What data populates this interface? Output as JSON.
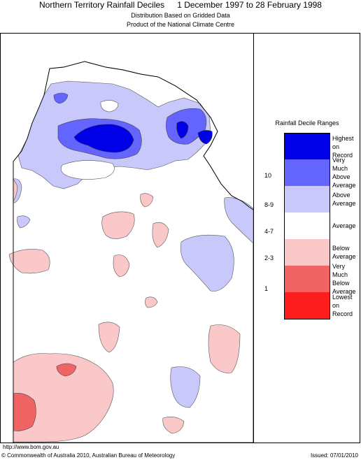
{
  "header": {
    "title": "Northern Territory Rainfall Deciles",
    "period": "1 December 1997 to 28 February 1998",
    "subtitle1": "Distribution Based on Gridded Data",
    "subtitle2": "Product of the National Climate Centre"
  },
  "legend": {
    "title": "Rainfall Decile Ranges",
    "items": [
      {
        "label": "Highest on\nRecord",
        "decile": "",
        "color": "#0000e6"
      },
      {
        "label": "Very Much\nAbove Average",
        "decile": "10",
        "color": "#6464ff"
      },
      {
        "label": "Above Average",
        "decile": "8-9",
        "color": "#c8c8fa"
      },
      {
        "label": "Average",
        "decile": "4-7",
        "color": "#ffffff"
      },
      {
        "label": "Below Average",
        "decile": "2-3",
        "color": "#fac8c8"
      },
      {
        "label": "Very Much\nBelow Average",
        "decile": "1",
        "color": "#f06464"
      },
      {
        "label": "Lowest on\nRecord",
        "decile": "",
        "color": "#ff1e1e"
      }
    ]
  },
  "footer": {
    "url": "http://www.bom.gov.au",
    "copyright": "© Commonwealth of Australia 2010, Australian Bureau of Meteorology",
    "issued": "Issued: 07/01/2010"
  }
}
